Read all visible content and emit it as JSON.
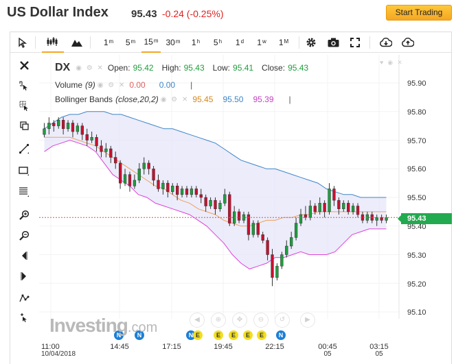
{
  "header": {
    "title": "US Dollar Index",
    "price": "95.43",
    "change": "-0.24 (-0.25%)",
    "start_trading": "Start Trading"
  },
  "toolbar": {
    "intervals": [
      {
        "base": "1",
        "unit": "m"
      },
      {
        "base": "5",
        "unit": "m"
      },
      {
        "base": "15",
        "unit": "m",
        "active": true
      },
      {
        "base": "30",
        "unit": "m"
      },
      {
        "base": "1",
        "unit": "h"
      },
      {
        "base": "5",
        "unit": "h"
      },
      {
        "base": "1",
        "unit": "d"
      },
      {
        "base": "1",
        "unit": "w"
      },
      {
        "base": "1",
        "unit": "M"
      }
    ]
  },
  "legend": {
    "symbol": "DX",
    "open_label": "Open:",
    "open": "95.42",
    "high_label": "High:",
    "high": "95.43",
    "low_label": "Low:",
    "low": "95.41",
    "close_label": "Close:",
    "close": "95.43",
    "volume_label": "Volume",
    "volume_param": "(9)",
    "volume_v1": "0.00",
    "volume_v2": "0.00",
    "bb_label": "Bollinger Bands",
    "bb_param": "(close,20,2)",
    "bb_mid": "95.45",
    "bb_upper": "95.50",
    "bb_lower": "95.39"
  },
  "price_axis": [
    "95.90",
    "95.80",
    "95.70",
    "95.60",
    "95.50",
    "95.40",
    "95.30",
    "95.20",
    "95.10"
  ],
  "last_price_tag": "95.43",
  "time_axis": [
    {
      "label": "11:00",
      "sub": "10/04/2018"
    },
    {
      "label": "14:45",
      "sub": ""
    },
    {
      "label": "17:15",
      "sub": ""
    },
    {
      "label": "19:45",
      "sub": ""
    },
    {
      "label": "22:15",
      "sub": ""
    },
    {
      "label": "00:45",
      "sub": "05"
    },
    {
      "label": "03:15",
      "sub": "05"
    }
  ],
  "events": [
    "N",
    "N",
    "N",
    "E",
    "E",
    "E",
    "E",
    "E",
    "N"
  ],
  "watermark": {
    "brand": "Investing",
    "suffix": ".com"
  },
  "colors": {
    "up": "#1e9e3c",
    "down": "#c8102e",
    "band_upper": "#3d85c6",
    "band_mid": "#f0a15a",
    "band_lower": "#e040d8",
    "band_fill": "#e6e6fa"
  },
  "chart_data": {
    "type": "candlestick",
    "ylim": [
      95.05,
      95.95
    ],
    "candles": [
      [
        95.72,
        95.74,
        95.76,
        95.71
      ],
      [
        95.74,
        95.76,
        95.78,
        95.72
      ],
      [
        95.76,
        95.75,
        95.77,
        95.73
      ],
      [
        95.75,
        95.77,
        95.78,
        95.74
      ],
      [
        95.77,
        95.74,
        95.78,
        95.72
      ],
      [
        95.74,
        95.76,
        95.77,
        95.73
      ],
      [
        95.76,
        95.73,
        95.77,
        95.71
      ],
      [
        95.73,
        95.75,
        95.76,
        95.72
      ],
      [
        95.75,
        95.72,
        95.76,
        95.7
      ],
      [
        95.72,
        95.7,
        95.74,
        95.68
      ],
      [
        95.7,
        95.71,
        95.73,
        95.69
      ],
      [
        95.71,
        95.68,
        95.72,
        95.66
      ],
      [
        95.68,
        95.66,
        95.7,
        95.64
      ],
      [
        95.66,
        95.67,
        95.69,
        95.64
      ],
      [
        95.67,
        95.64,
        95.68,
        95.62
      ],
      [
        95.64,
        95.62,
        95.66,
        95.6
      ],
      [
        95.62,
        95.55,
        95.63,
        95.53
      ],
      [
        95.55,
        95.58,
        95.6,
        95.54
      ],
      [
        95.58,
        95.54,
        95.59,
        95.52
      ],
      [
        95.54,
        95.56,
        95.58,
        95.53
      ],
      [
        95.56,
        95.6,
        95.62,
        95.55
      ],
      [
        95.6,
        95.62,
        95.64,
        95.58
      ],
      [
        95.62,
        95.6,
        95.63,
        95.58
      ],
      [
        95.6,
        95.56,
        95.61,
        95.54
      ],
      [
        95.56,
        95.53,
        95.58,
        95.52
      ],
      [
        95.53,
        95.55,
        95.56,
        95.51
      ],
      [
        95.55,
        95.52,
        95.56,
        95.5
      ],
      [
        95.52,
        95.54,
        95.55,
        95.51
      ],
      [
        95.54,
        95.51,
        95.55,
        95.49
      ],
      [
        95.51,
        95.53,
        95.54,
        95.5
      ],
      [
        95.53,
        95.51,
        95.54,
        95.5
      ],
      [
        95.51,
        95.53,
        95.54,
        95.5
      ],
      [
        95.53,
        95.51,
        95.54,
        95.5
      ],
      [
        95.51,
        95.5,
        95.53,
        95.48
      ],
      [
        95.5,
        95.47,
        95.51,
        95.45
      ],
      [
        95.47,
        95.49,
        95.5,
        95.46
      ],
      [
        95.49,
        95.46,
        95.5,
        95.44
      ],
      [
        95.46,
        95.48,
        95.49,
        95.45
      ],
      [
        95.48,
        95.51,
        95.53,
        95.47
      ],
      [
        95.51,
        95.41,
        95.52,
        95.4
      ],
      [
        95.41,
        95.45,
        95.47,
        95.4
      ],
      [
        95.45,
        95.42,
        95.46,
        95.41
      ],
      [
        95.42,
        95.44,
        95.45,
        95.41
      ],
      [
        95.44,
        95.37,
        95.45,
        95.35
      ],
      [
        95.37,
        95.41,
        95.42,
        95.36
      ],
      [
        95.41,
        95.37,
        95.42,
        95.36
      ],
      [
        95.37,
        95.35,
        95.38,
        95.34
      ],
      [
        95.35,
        95.3,
        95.36,
        95.28
      ],
      [
        95.3,
        95.22,
        95.32,
        95.19
      ],
      [
        95.22,
        95.26,
        95.27,
        95.21
      ],
      [
        95.26,
        95.3,
        95.31,
        95.25
      ],
      [
        95.3,
        95.33,
        95.35,
        95.29
      ],
      [
        95.33,
        95.36,
        95.38,
        95.32
      ],
      [
        95.36,
        95.41,
        95.43,
        95.35
      ],
      [
        95.41,
        95.44,
        95.46,
        95.4
      ],
      [
        95.44,
        95.43,
        95.47,
        95.42
      ],
      [
        95.43,
        95.47,
        95.49,
        95.42
      ],
      [
        95.47,
        95.45,
        95.48,
        95.44
      ],
      [
        95.45,
        95.48,
        95.5,
        95.44
      ],
      [
        95.48,
        95.45,
        95.49,
        95.43
      ],
      [
        95.45,
        95.53,
        95.55,
        95.44
      ],
      [
        95.53,
        95.49,
        95.54,
        95.47
      ],
      [
        95.49,
        95.46,
        95.5,
        95.44
      ],
      [
        95.46,
        95.48,
        95.49,
        95.45
      ],
      [
        95.48,
        95.45,
        95.49,
        95.44
      ],
      [
        95.45,
        95.47,
        95.48,
        95.44
      ],
      [
        95.47,
        95.44,
        95.48,
        95.43
      ],
      [
        95.44,
        95.42,
        95.45,
        95.41
      ],
      [
        95.42,
        95.44,
        95.45,
        95.41
      ],
      [
        95.44,
        95.42,
        95.45,
        95.41
      ],
      [
        95.42,
        95.43,
        95.44,
        95.4
      ],
      [
        95.43,
        95.42,
        95.44,
        95.41
      ],
      [
        95.42,
        95.43,
        95.44,
        95.41
      ]
    ],
    "band_upper": [
      95.74,
      95.76,
      95.78,
      95.79,
      95.79,
      95.8,
      95.8,
      95.8,
      95.79,
      95.79,
      95.78,
      95.77,
      95.76,
      95.75,
      95.74,
      95.74,
      95.73,
      95.72,
      95.71,
      95.7,
      95.69,
      95.67,
      95.65,
      95.63,
      95.62,
      95.61,
      95.6,
      95.6,
      95.59,
      95.58,
      95.57,
      95.56,
      95.55,
      95.53,
      95.52,
      95.51,
      95.51,
      95.5,
      95.5,
      95.5,
      95.5
    ],
    "band_mid": [
      95.71,
      95.71,
      95.71,
      95.71,
      95.7,
      95.69,
      95.68,
      95.66,
      95.64,
      95.62,
      95.6,
      95.58,
      95.56,
      95.54,
      95.53,
      95.51,
      95.49,
      95.48,
      95.46,
      95.45,
      95.44,
      95.42,
      95.41,
      95.4,
      95.4,
      95.41,
      95.42,
      95.42,
      95.43,
      95.43,
      95.44,
      95.44,
      95.45,
      95.45,
      95.45,
      95.45,
      95.45,
      95.45,
      95.45,
      95.45,
      95.45
    ],
    "band_lower": [
      95.66,
      95.68,
      95.69,
      95.7,
      95.69,
      95.68,
      95.66,
      95.62,
      95.58,
      95.56,
      95.54,
      95.51,
      95.5,
      95.48,
      95.47,
      95.46,
      95.45,
      95.44,
      95.42,
      95.4,
      95.37,
      95.34,
      95.3,
      95.27,
      95.25,
      95.26,
      95.27,
      95.29,
      95.29,
      95.3,
      95.31,
      95.3,
      95.3,
      95.3,
      95.31,
      95.34,
      95.37,
      95.38,
      95.39,
      95.39,
      95.39
    ]
  }
}
